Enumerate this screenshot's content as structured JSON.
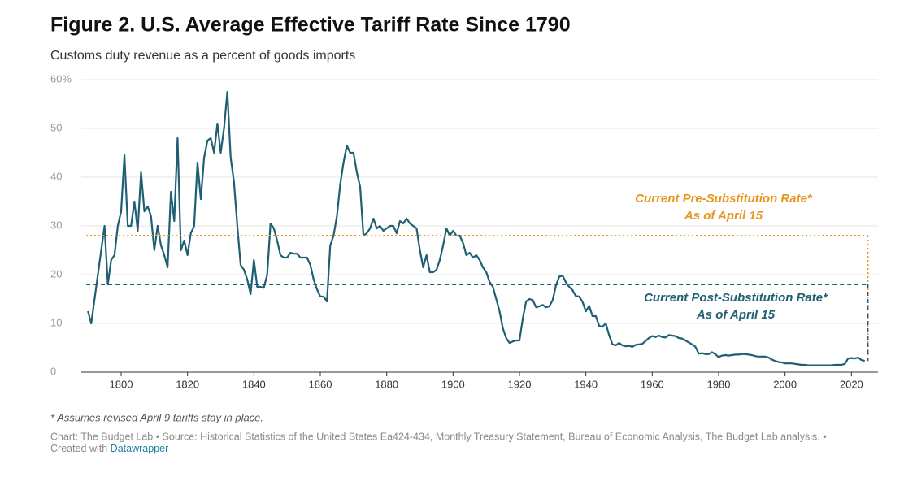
{
  "chart_data": {
    "type": "line",
    "title": "Figure 2. U.S. Average Effective Tariff Rate Since 1790",
    "subtitle": "Customs duty revenue as a percent of goods imports",
    "x": [
      1790,
      1791,
      1792,
      1793,
      1794,
      1795,
      1796,
      1797,
      1798,
      1799,
      1800,
      1801,
      1802,
      1803,
      1804,
      1805,
      1806,
      1807,
      1808,
      1809,
      1810,
      1811,
      1812,
      1813,
      1814,
      1815,
      1816,
      1817,
      1818,
      1819,
      1820,
      1821,
      1822,
      1823,
      1824,
      1825,
      1826,
      1827,
      1828,
      1829,
      1830,
      1831,
      1832,
      1833,
      1834,
      1835,
      1836,
      1837,
      1838,
      1839,
      1840,
      1841,
      1842,
      1843,
      1844,
      1845,
      1846,
      1847,
      1848,
      1849,
      1850,
      1851,
      1852,
      1853,
      1854,
      1855,
      1856,
      1857,
      1858,
      1859,
      1860,
      1861,
      1862,
      1863,
      1864,
      1865,
      1866,
      1867,
      1868,
      1869,
      1870,
      1871,
      1872,
      1873,
      1874,
      1875,
      1876,
      1877,
      1878,
      1879,
      1880,
      1881,
      1882,
      1883,
      1884,
      1885,
      1886,
      1887,
      1888,
      1889,
      1890,
      1891,
      1892,
      1893,
      1894,
      1895,
      1896,
      1897,
      1898,
      1899,
      1900,
      1901,
      1902,
      1903,
      1904,
      1905,
      1906,
      1907,
      1908,
      1909,
      1910,
      1911,
      1912,
      1913,
      1914,
      1915,
      1916,
      1917,
      1918,
      1919,
      1920,
      1921,
      1922,
      1923,
      1924,
      1925,
      1926,
      1927,
      1928,
      1929,
      1930,
      1931,
      1932,
      1933,
      1934,
      1935,
      1936,
      1937,
      1938,
      1939,
      1940,
      1941,
      1942,
      1943,
      1944,
      1945,
      1946,
      1947,
      1948,
      1949,
      1950,
      1951,
      1952,
      1953,
      1954,
      1955,
      1956,
      1957,
      1958,
      1959,
      1960,
      1961,
      1962,
      1963,
      1964,
      1965,
      1966,
      1967,
      1968,
      1969,
      1970,
      1971,
      1972,
      1973,
      1974,
      1975,
      1976,
      1977,
      1978,
      1979,
      1980,
      1981,
      1982,
      1983,
      1984,
      1985,
      1986,
      1987,
      1988,
      1989,
      1990,
      1991,
      1992,
      1993,
      1994,
      1995,
      1996,
      1997,
      1998,
      1999,
      2000,
      2001,
      2002,
      2003,
      2004,
      2005,
      2006,
      2007,
      2008,
      2009,
      2010,
      2011,
      2012,
      2013,
      2014,
      2015,
      2016,
      2017,
      2018,
      2019,
      2020,
      2021,
      2022,
      2023,
      2024
    ],
    "series": [
      {
        "color": "#1e5f74",
        "values": [
          12.5,
          10,
          15,
          20,
          25,
          30,
          18,
          23,
          24,
          30,
          33,
          44.5,
          30,
          30,
          35,
          29,
          41,
          33,
          34,
          32,
          25,
          30,
          26,
          24,
          21.5,
          37,
          31,
          48,
          25,
          27,
          24,
          28.5,
          30,
          43,
          35.5,
          44,
          47.5,
          48,
          45,
          51,
          45,
          50,
          57.5,
          44,
          39,
          30,
          22,
          21,
          19,
          16,
          23,
          17.5,
          17.5,
          17.3,
          20,
          30.5,
          29.5,
          27,
          24,
          23.5,
          23.5,
          24.5,
          24.3,
          24.3,
          23.5,
          23.5,
          23.5,
          22,
          19,
          17,
          15.5,
          15.5,
          14.5,
          26,
          28,
          32,
          38.5,
          43,
          46.5,
          45,
          45,
          41,
          38,
          28,
          28.5,
          29.5,
          31.5,
          29.5,
          30,
          29,
          29.5,
          30,
          30,
          28.5,
          31,
          30.5,
          31.5,
          30.5,
          30,
          29.5,
          25,
          21.5,
          24,
          20.5,
          20.5,
          21,
          23,
          26,
          29.5,
          28,
          29,
          28,
          28,
          26.5,
          24,
          24.5,
          23.5,
          24,
          23,
          21.5,
          20.5,
          18.5,
          17.5,
          15,
          12.5,
          9,
          7,
          6,
          6.3,
          6.5,
          6.5,
          11,
          14.5,
          15,
          14.8,
          13.3,
          13.5,
          13.8,
          13.3,
          13.5,
          14.8,
          17.8,
          19.6,
          19.8,
          18.4,
          17.5,
          16.8,
          15.6,
          15.5,
          14.4,
          12.5,
          13.6,
          11.5,
          11.5,
          9.5,
          9.3,
          10,
          7.6,
          5.7,
          5.5,
          6,
          5.5,
          5.3,
          5.4,
          5.2,
          5.6,
          5.7,
          5.8,
          6.4,
          7,
          7.4,
          7.2,
          7.5,
          7.2,
          7.1,
          7.6,
          7.5,
          7.4,
          7,
          6.9,
          6.5,
          6.1,
          5.7,
          5.2,
          3.8,
          3.9,
          3.7,
          3.7,
          4.1,
          3.7,
          3.1,
          3.4,
          3.5,
          3.4,
          3.5,
          3.6,
          3.6,
          3.7,
          3.7,
          3.6,
          3.5,
          3.3,
          3.2,
          3.2,
          3.2,
          3,
          2.6,
          2.3,
          2.1,
          2,
          1.8,
          1.8,
          1.8,
          1.7,
          1.6,
          1.5,
          1.5,
          1.4,
          1.4,
          1.4,
          1.4,
          1.4,
          1.4,
          1.4,
          1.4,
          1.5,
          1.5,
          1.5,
          1.7,
          2.8,
          2.9,
          2.8,
          3,
          2.5,
          2.3
        ]
      }
    ],
    "xlim": [
      1788,
      2028
    ],
    "xticks": [
      1800,
      1820,
      1840,
      1860,
      1880,
      1900,
      1920,
      1940,
      1960,
      1980,
      2000,
      2020
    ],
    "ylim": [
      0,
      60
    ],
    "yticks": [
      0,
      10,
      20,
      30,
      40,
      50,
      {
        "value": 60,
        "label": "60%"
      }
    ],
    "grid": true,
    "reference_lines": [
      {
        "value": 28,
        "color": "#e8961e",
        "style": "dotted",
        "label": [
          "Current Pre-Substitution Rate*",
          "As of April 15"
        ]
      },
      {
        "value": 18,
        "color": "#1e5f74",
        "style": "dashed",
        "label": [
          "Current Post-Substitution Rate*",
          "As of April 15"
        ]
      }
    ],
    "footnote": "* Assumes revised April 9 tariffs stay in place.",
    "source": "Chart: The Budget Lab • Source: Historical Statistics of the United States Ea424-434, Monthly Treasury Statement, Bureau of Economic Analysis, The Budget Lab analysis. •",
    "created_with": "Created with",
    "tool": "Datawrapper"
  }
}
